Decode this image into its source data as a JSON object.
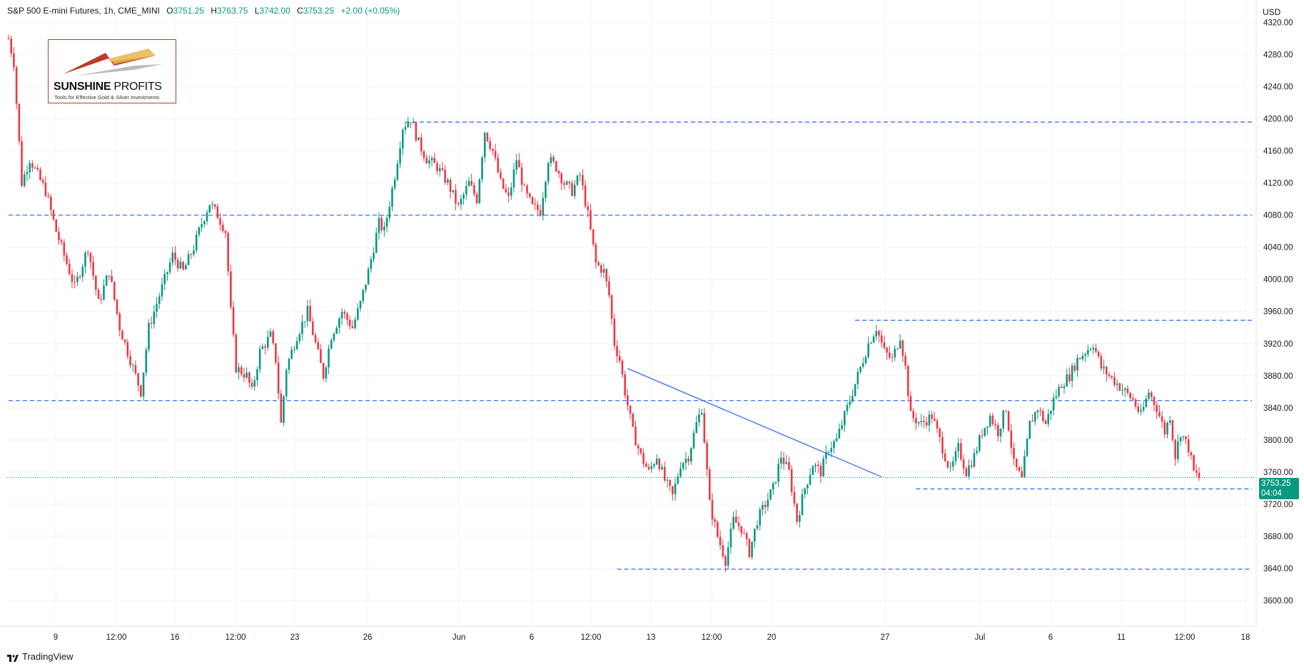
{
  "header": {
    "symbol": "S&P 500 E-mini Futures, 1h, CME_MINI",
    "open_label": "O",
    "open": "3751.25",
    "high_label": "H",
    "high": "3763.75",
    "low_label": "L",
    "low": "3742.00",
    "close_label": "C",
    "close": "3753.25",
    "change": "+2.00 (+0.05%)"
  },
  "currency": "USD",
  "logo": {
    "brand_bold": "SUNSHINE",
    "brand_thin": " PROFITS",
    "tagline": "Tools for Effective Gold & Silver Investments"
  },
  "footer": {
    "label": "TradingView"
  },
  "last_price": {
    "price": "3753.25",
    "countdown": "04:04"
  },
  "colors": {
    "up": "#089981",
    "down": "#f23645",
    "line": "#2962ff",
    "grid": "#f0f3fa",
    "last_price": "#089981"
  },
  "chart_data": {
    "type": "candlestick",
    "title": "S&P 500 E-mini Futures, 1h, CME_MINI",
    "ylim": [
      3568,
      4348
    ],
    "y_ticks": [
      3600,
      3640,
      3680,
      3720,
      3760,
      3800,
      3840,
      3880,
      3920,
      3960,
      4000,
      4040,
      4080,
      4120,
      4160,
      4200,
      4240,
      4280,
      4320
    ],
    "x_ticks": [
      "9",
      "12:00",
      "16",
      "12:00",
      "23",
      "26",
      "Jun",
      "6",
      "12:00",
      "13",
      "12:00",
      "20",
      "27",
      "Jul",
      "6",
      "11",
      "12:00",
      "18"
    ],
    "price_path": [
      [
        0,
        4300
      ],
      [
        2,
        4270
      ],
      [
        5,
        4120
      ],
      [
        8,
        4150
      ],
      [
        14,
        4110
      ],
      [
        18,
        4060
      ],
      [
        25,
        3990
      ],
      [
        30,
        4040
      ],
      [
        34,
        3970
      ],
      [
        38,
        4010
      ],
      [
        42,
        3940
      ],
      [
        48,
        3880
      ],
      [
        50,
        3860
      ],
      [
        53,
        3940
      ],
      [
        58,
        3990
      ],
      [
        62,
        4030
      ],
      [
        66,
        4010
      ],
      [
        70,
        4040
      ],
      [
        73,
        4070
      ],
      [
        76,
        4095
      ],
      [
        79,
        4080
      ],
      [
        82,
        4060
      ],
      [
        84,
        3960
      ],
      [
        86,
        3890
      ],
      [
        90,
        3880
      ],
      [
        92,
        3860
      ],
      [
        95,
        3910
      ],
      [
        99,
        3930
      ],
      [
        101,
        3900
      ],
      [
        103,
        3820
      ],
      [
        105,
        3890
      ],
      [
        109,
        3930
      ],
      [
        113,
        3960
      ],
      [
        116,
        3920
      ],
      [
        119,
        3880
      ],
      [
        122,
        3930
      ],
      [
        126,
        3960
      ],
      [
        130,
        3940
      ],
      [
        133,
        3970
      ],
      [
        136,
        4010
      ],
      [
        140,
        4070
      ],
      [
        142,
        4060
      ],
      [
        146,
        4130
      ],
      [
        149,
        4190
      ],
      [
        152,
        4200
      ],
      [
        155,
        4170
      ],
      [
        158,
        4150
      ],
      [
        162,
        4140
      ],
      [
        166,
        4120
      ],
      [
        170,
        4090
      ],
      [
        174,
        4120
      ],
      [
        177,
        4100
      ],
      [
        180,
        4185
      ],
      [
        183,
        4160
      ],
      [
        186,
        4120
      ],
      [
        189,
        4100
      ],
      [
        192,
        4150
      ],
      [
        195,
        4110
      ],
      [
        198,
        4090
      ],
      [
        201,
        4085
      ],
      [
        204,
        4150
      ],
      [
        207,
        4140
      ],
      [
        210,
        4120
      ],
      [
        213,
        4110
      ],
      [
        216,
        4130
      ],
      [
        219,
        4080
      ],
      [
        222,
        4020
      ],
      [
        225,
        4010
      ],
      [
        227,
        3980
      ],
      [
        229,
        3920
      ],
      [
        231,
        3900
      ],
      [
        233,
        3860
      ],
      [
        236,
        3810
      ],
      [
        239,
        3780
      ],
      [
        242,
        3760
      ],
      [
        245,
        3780
      ],
      [
        248,
        3750
      ],
      [
        251,
        3730
      ],
      [
        254,
        3770
      ],
      [
        257,
        3780
      ],
      [
        260,
        3820
      ],
      [
        262,
        3840
      ],
      [
        265,
        3720
      ],
      [
        268,
        3680
      ],
      [
        271,
        3650
      ],
      [
        274,
        3700
      ],
      [
        277,
        3690
      ],
      [
        280,
        3660
      ],
      [
        283,
        3700
      ],
      [
        286,
        3720
      ],
      [
        289,
        3740
      ],
      [
        292,
        3780
      ],
      [
        295,
        3760
      ],
      [
        298,
        3700
      ],
      [
        301,
        3740
      ],
      [
        304,
        3770
      ],
      [
        307,
        3760
      ],
      [
        310,
        3790
      ],
      [
        313,
        3800
      ],
      [
        316,
        3830
      ],
      [
        319,
        3860
      ],
      [
        322,
        3890
      ],
      [
        325,
        3920
      ],
      [
        328,
        3940
      ],
      [
        331,
        3910
      ],
      [
        334,
        3900
      ],
      [
        337,
        3930
      ],
      [
        339,
        3890
      ],
      [
        341,
        3830
      ],
      [
        345,
        3820
      ],
      [
        349,
        3830
      ],
      [
        353,
        3790
      ],
      [
        356,
        3760
      ],
      [
        359,
        3790
      ],
      [
        362,
        3760
      ],
      [
        365,
        3780
      ],
      [
        368,
        3810
      ],
      [
        371,
        3830
      ],
      [
        374,
        3810
      ],
      [
        377,
        3840
      ],
      [
        380,
        3770
      ],
      [
        383,
        3750
      ],
      [
        386,
        3820
      ],
      [
        389,
        3840
      ],
      [
        392,
        3820
      ],
      [
        395,
        3850
      ],
      [
        398,
        3870
      ],
      [
        401,
        3880
      ],
      [
        404,
        3900
      ],
      [
        407,
        3910
      ],
      [
        410,
        3920
      ],
      [
        413,
        3890
      ],
      [
        416,
        3880
      ],
      [
        419,
        3870
      ],
      [
        422,
        3860
      ],
      [
        425,
        3850
      ],
      [
        428,
        3830
      ],
      [
        431,
        3860
      ],
      [
        434,
        3840
      ],
      [
        437,
        3810
      ],
      [
        439,
        3830
      ],
      [
        441,
        3780
      ],
      [
        443,
        3810
      ],
      [
        446,
        3790
      ],
      [
        448,
        3760
      ],
      [
        450,
        3753
      ]
    ],
    "horizontal_levels": [
      {
        "price": 4196,
        "x_from": 150,
        "x_to": 470
      },
      {
        "price": 4080,
        "x_from": 0,
        "x_to": 470
      },
      {
        "price": 3849,
        "x_from": 0,
        "x_to": 470
      },
      {
        "price": 3949,
        "x_from": 320,
        "x_to": 470
      },
      {
        "price": 3739,
        "x_from": 343,
        "x_to": 470
      },
      {
        "price": 3639,
        "x_from": 230,
        "x_to": 470
      }
    ],
    "trendline": {
      "from": [
        234,
        3889
      ],
      "to": [
        330,
        3754
      ]
    },
    "last_price": 3753.25
  }
}
